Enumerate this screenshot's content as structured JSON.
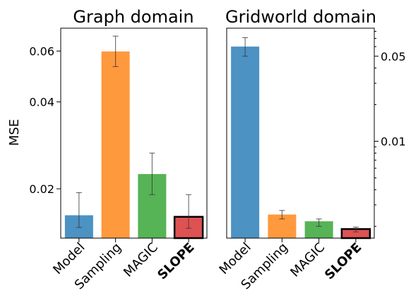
{
  "chart_data": [
    {
      "type": "bar",
      "title": "Graph domain",
      "ylabel": "MSE",
      "yscale": "log",
      "ylim": [
        0.0135,
        0.072
      ],
      "yticks": [
        {
          "value": 0.02,
          "label": "0.02"
        },
        {
          "value": 0.04,
          "label": "0.04"
        },
        {
          "value": 0.06,
          "label": "0.06"
        }
      ],
      "categories": [
        "Model",
        "Sampling",
        "MAGIC",
        "SLOPE"
      ],
      "values": [
        0.0162,
        0.0598,
        0.0225,
        0.016
      ],
      "errors": [
        [
          0.0147,
          0.0194
        ],
        [
          0.053,
          0.0676
        ],
        [
          0.0191,
          0.0266
        ],
        [
          0.0146,
          0.0191
        ]
      ],
      "colors": [
        "#1f77b4",
        "#ff7f0e",
        "#2ca02c",
        "#d62728"
      ]
    },
    {
      "type": "bar",
      "title": "Gridworld domain",
      "yscale": "log",
      "ylim": [
        0.0016,
        0.085
      ],
      "yticks": [
        {
          "value": 0.01,
          "label": "0.01"
        },
        {
          "value": 0.05,
          "label": "0.05"
        }
      ],
      "categories": [
        "Model",
        "Sampling",
        "MAGIC",
        "SLOPE"
      ],
      "values": [
        0.06,
        0.0025,
        0.0022,
        0.0019
      ],
      "errors": [
        [
          0.05,
          0.071
        ],
        [
          0.0023,
          0.0027
        ],
        [
          0.002,
          0.0023
        ],
        [
          0.0018,
          0.00197
        ]
      ],
      "colors": [
        "#1f77b4",
        "#ff7f0e",
        "#2ca02c",
        "#d62728"
      ]
    }
  ]
}
